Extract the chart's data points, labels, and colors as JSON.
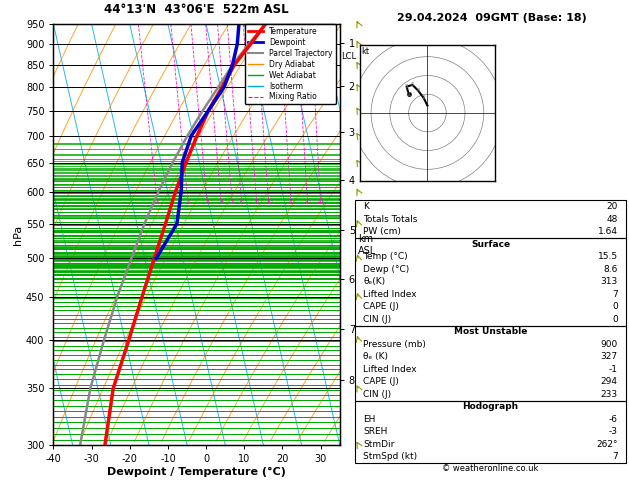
{
  "title_left": "44°13'N  43°06'E  522m ASL",
  "title_right": "29.04.2024  09GMT (Base: 18)",
  "xlabel": "Dewpoint / Temperature (°C)",
  "pressure_levels": [
    300,
    350,
    400,
    450,
    500,
    550,
    600,
    650,
    700,
    750,
    800,
    850,
    900,
    950
  ],
  "temp_profile_p": [
    950,
    900,
    850,
    800,
    750,
    700,
    650,
    600,
    550,
    500,
    450,
    400,
    350,
    300
  ],
  "temp_profile_t": [
    15.5,
    10.5,
    5.0,
    0.5,
    -4.5,
    -9.0,
    -13.5,
    -18.0,
    -22.5,
    -27.5,
    -33.0,
    -39.0,
    -46.0,
    -51.5
  ],
  "dewp_profile_p": [
    950,
    900,
    850,
    800,
    750,
    700,
    650,
    600,
    550,
    500
  ],
  "dewp_profile_t": [
    8.6,
    7.0,
    4.5,
    1.0,
    -4.5,
    -10.5,
    -14.5,
    -16.5,
    -19.5,
    -27.0
  ],
  "parcel_profile_p": [
    950,
    900,
    850,
    800,
    750,
    700,
    650,
    600,
    550,
    500,
    450,
    400,
    350,
    300
  ],
  "parcel_profile_t": [
    15.5,
    10.0,
    4.5,
    -0.5,
    -6.0,
    -11.5,
    -17.0,
    -22.5,
    -28.0,
    -33.5,
    -39.5,
    -45.5,
    -52.0,
    -58.0
  ],
  "lcl_pressure": 870,
  "mixing_ratio_values": [
    1,
    2,
    3,
    4,
    5,
    6,
    8,
    10,
    15,
    20,
    25
  ],
  "km_ticks": [
    1,
    2,
    3,
    4,
    5,
    6,
    7,
    8
  ],
  "km_pressures": [
    902,
    803,
    707,
    620,
    540,
    472,
    412,
    358
  ],
  "wind_p": [
    950,
    900,
    850,
    800,
    750,
    700,
    650,
    600,
    550,
    500,
    450,
    400,
    350,
    300
  ],
  "wind_u": [
    -2,
    -3,
    -4,
    -5,
    -6,
    -8,
    -8,
    -7,
    -6,
    -5,
    -4,
    -3,
    -7,
    -10
  ],
  "wind_v": [
    3,
    4,
    5,
    6,
    7,
    8,
    9,
    10,
    11,
    12,
    10,
    8,
    10,
    12
  ],
  "hodo_u": [
    0.0,
    -1.0,
    -2.5,
    -4.0,
    -5.5,
    -5.0
  ],
  "hodo_v": [
    2.0,
    4.0,
    6.0,
    7.5,
    7.0,
    5.0
  ],
  "colors": {
    "temp": "#ff0000",
    "dewp": "#0000cc",
    "parcel": "#888888",
    "dry_adiabat": "#ff8c00",
    "wet_adiabat": "#00aa00",
    "isotherm": "#00aaee",
    "mixing_ratio": "#ff00cc",
    "bg": "#ffffff"
  },
  "legend_labels": [
    "Temperature",
    "Dewpoint",
    "Parcel Trajectory",
    "Dry Adiabat",
    "Wet Adiabat",
    "Isotherm",
    "Mixing Ratio"
  ],
  "stats_K": 20,
  "stats_TT": 48,
  "stats_PW": "1.64",
  "stats_sfc_temp": "15.5",
  "stats_sfc_dewp": "8.6",
  "stats_sfc_theta_e": 313,
  "stats_sfc_LI": 7,
  "stats_sfc_CAPE": 0,
  "stats_sfc_CIN": 0,
  "stats_mu_pres": 900,
  "stats_mu_theta_e": 327,
  "stats_mu_LI": -1,
  "stats_mu_CAPE": 294,
  "stats_mu_CIN": 233,
  "stats_EH": -6,
  "stats_SREH": -3,
  "stats_StmDir": "262°",
  "stats_StmSpd": 7,
  "pmin": 300,
  "pmax": 950,
  "tmin": -40,
  "tmax": 35,
  "skew_factor": 25.0
}
